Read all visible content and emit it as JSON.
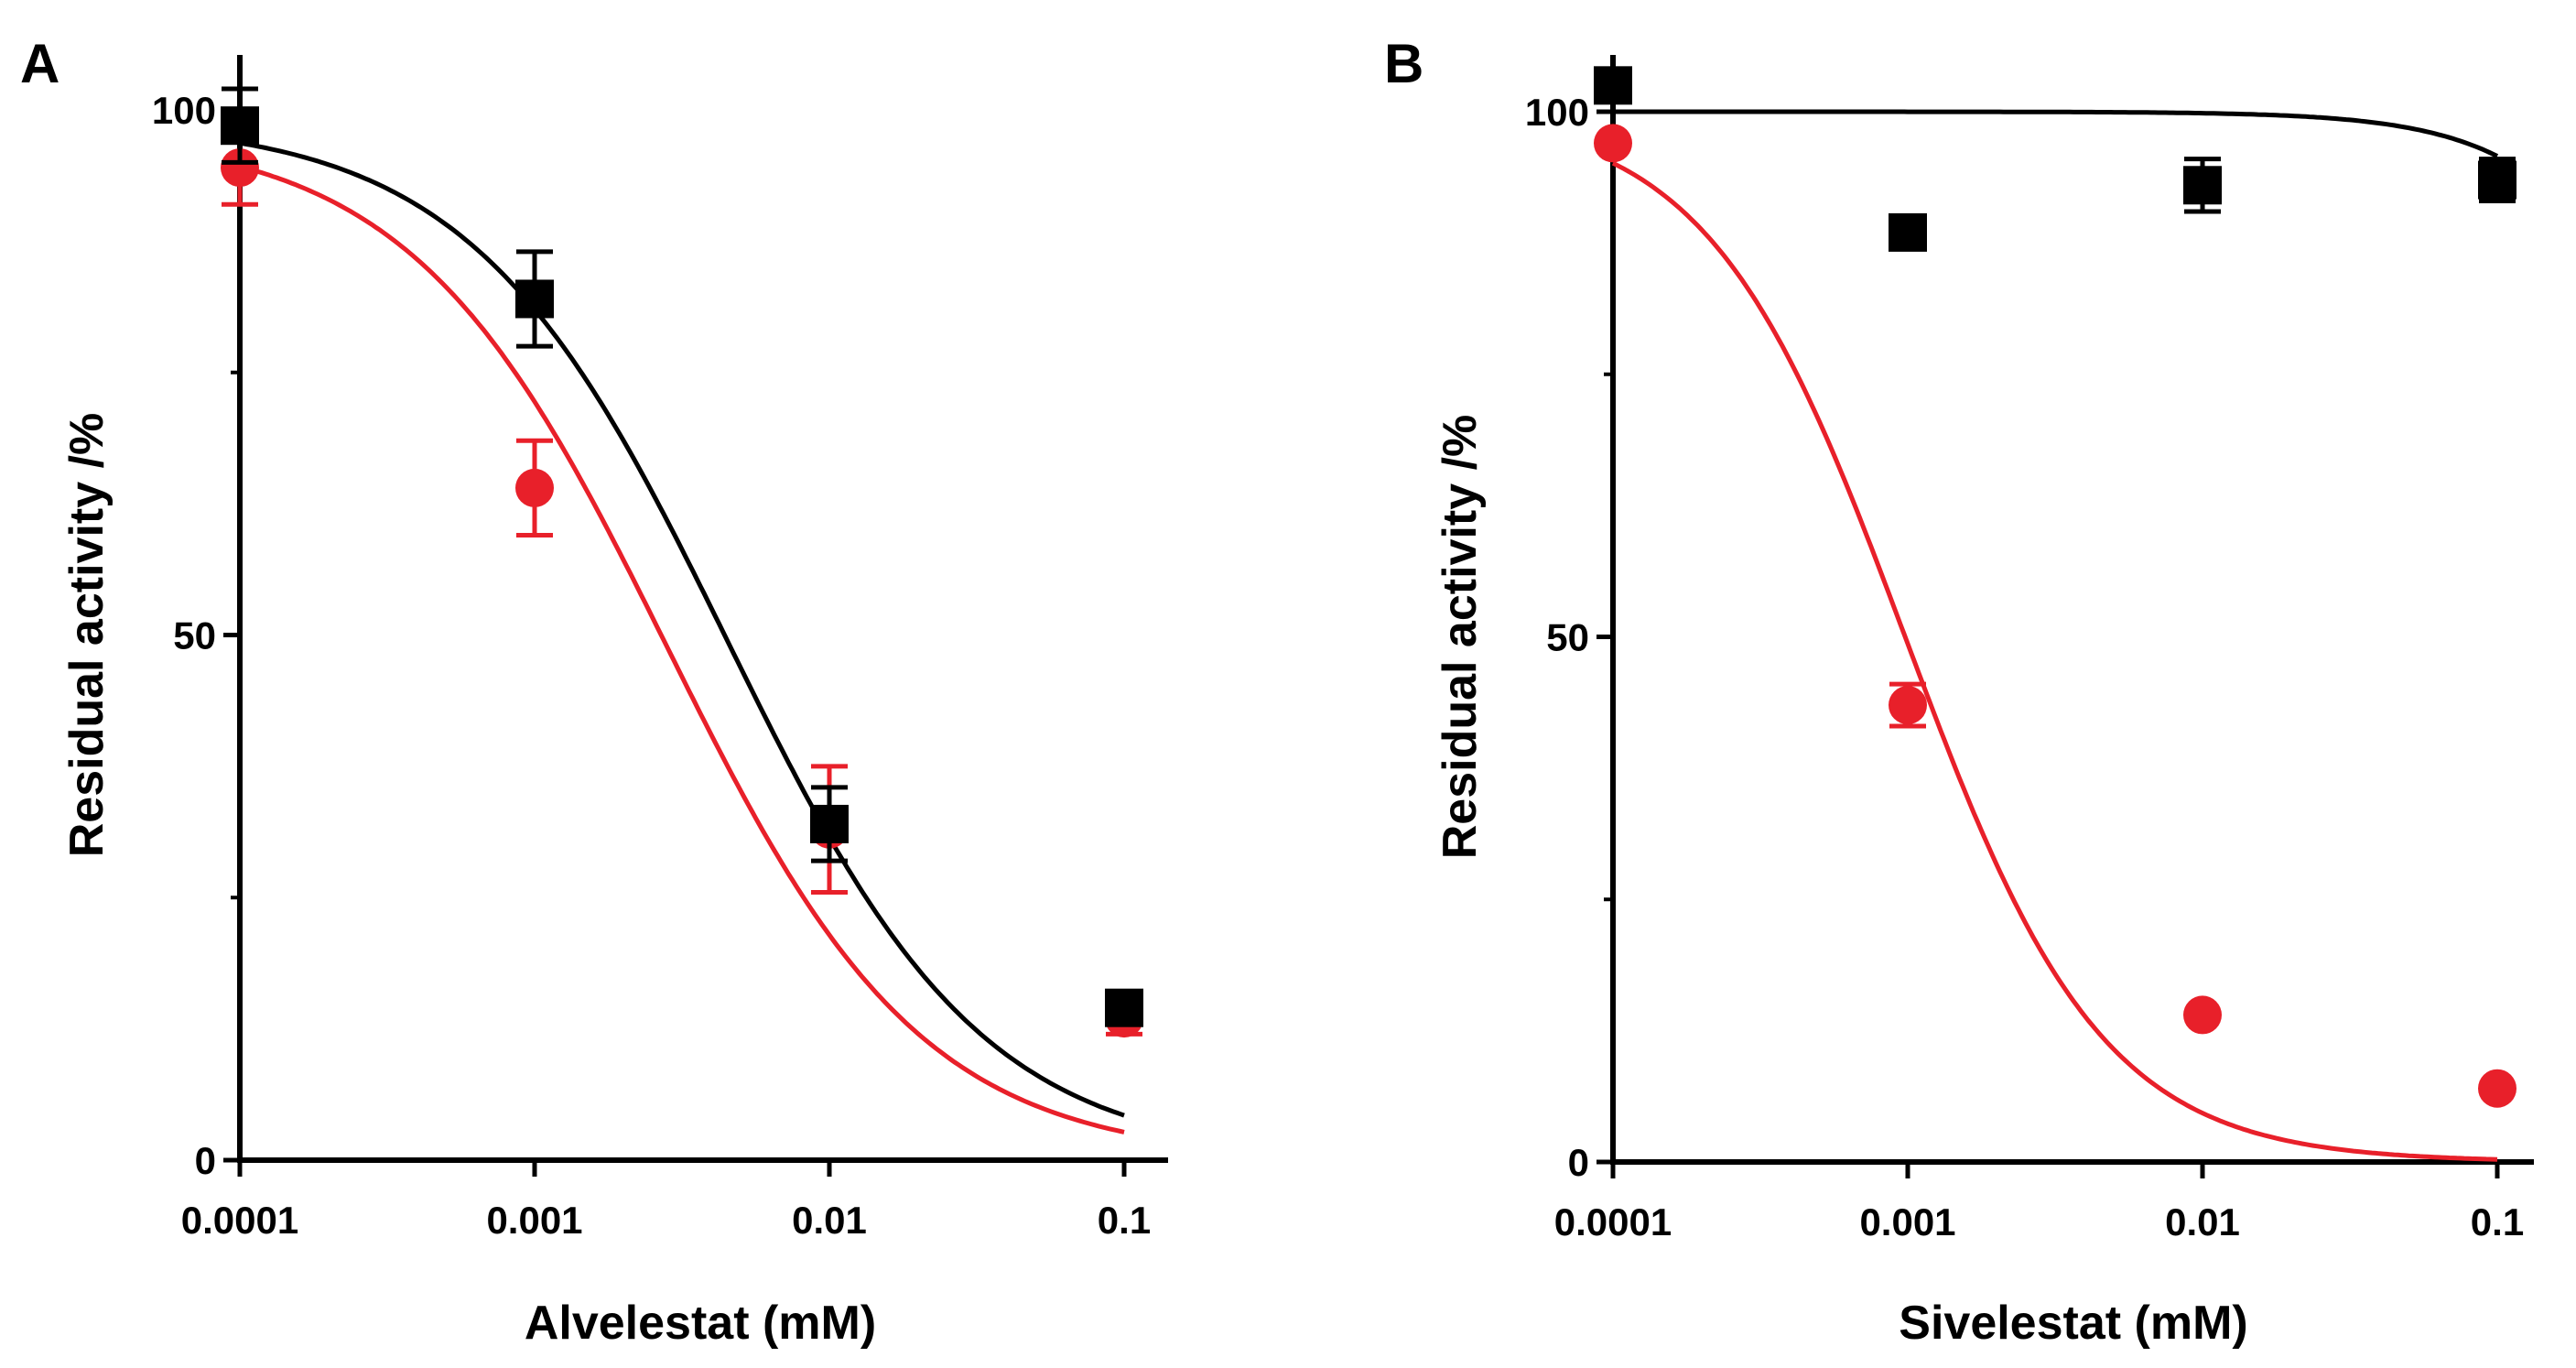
{
  "colors": {
    "black_series": "#000000",
    "red_series": "#e8202a",
    "axis": "#000000"
  },
  "panels": [
    {
      "label": "A"
    },
    {
      "label": "B"
    }
  ],
  "chart_data": [
    {
      "type": "scatter",
      "panel": "A",
      "xlabel": "Alvelestat (mM)",
      "ylabel": "Residual activity /%",
      "x_scale": "log",
      "xlim": [
        0.0001,
        0.1
      ],
      "ylim": [
        0,
        100
      ],
      "x_ticks": [
        0.0001,
        0.001,
        0.01,
        0.1
      ],
      "x_tick_labels": [
        "0.0001",
        "0.001",
        "0.01",
        "0.1"
      ],
      "y_ticks": [
        0,
        50,
        100
      ],
      "y_tick_labels": [
        "0",
        "50",
        "100"
      ],
      "grid": false,
      "legend": "none",
      "series": [
        {
          "color": "#e8202a",
          "marker": "circle",
          "points": [
            {
              "x": 0.0001,
              "y": 94.5,
              "err": 3.5
            },
            {
              "x": 0.001,
              "y": 64.0,
              "err": 4.5
            },
            {
              "x": 0.01,
              "y": 31.5,
              "err": 6.0
            },
            {
              "x": 0.1,
              "y": 13.5,
              "err": 1.5
            }
          ],
          "fit": {
            "top": 98,
            "bottom": 0,
            "ic50": 0.0028,
            "hill": 1.0
          }
        },
        {
          "color": "#000000",
          "marker": "square",
          "points": [
            {
              "x": 0.0001,
              "y": 98.5,
              "err": 3.5
            },
            {
              "x": 0.001,
              "y": 82.0,
              "err": 4.5
            },
            {
              "x": 0.01,
              "y": 32.0,
              "err": 3.5
            },
            {
              "x": 0.1,
              "y": 14.5,
              "err": 1.0
            }
          ],
          "fit": {
            "top": 99,
            "bottom": 0,
            "ic50": 0.0045,
            "hill": 1.0
          }
        }
      ]
    },
    {
      "type": "scatter",
      "panel": "B",
      "xlabel": "Sivelestat (mM)",
      "ylabel": "Residual activity /%",
      "x_scale": "log",
      "xlim": [
        0.0001,
        0.1
      ],
      "ylim": [
        0,
        100
      ],
      "x_ticks": [
        0.0001,
        0.001,
        0.01,
        0.1
      ],
      "x_tick_labels": [
        "0.0001",
        "0.001",
        "0.01",
        "0.1"
      ],
      "y_ticks": [
        0,
        50,
        100
      ],
      "y_tick_labels": [
        "0",
        "50",
        "100"
      ],
      "grid": false,
      "legend": "none",
      "series": [
        {
          "color": "#e8202a",
          "marker": "circle",
          "points": [
            {
              "x": 0.0001,
              "y": 97.0,
              "err": 0
            },
            {
              "x": 0.001,
              "y": 43.5,
              "err": 2.0
            },
            {
              "x": 0.01,
              "y": 14.0,
              "err": 0
            },
            {
              "x": 0.1,
              "y": 7.0,
              "err": 0
            }
          ],
          "fit": {
            "top": 100,
            "bottom": 0,
            "ic50": 0.00098,
            "hill": 1.3
          }
        },
        {
          "color": "#000000",
          "marker": "square",
          "points": [
            {
              "x": 0.0001,
              "y": 102.5,
              "err": 1.5
            },
            {
              "x": 0.001,
              "y": 88.5,
              "err": 1.0
            },
            {
              "x": 0.01,
              "y": 93.0,
              "err": 2.5
            },
            {
              "x": 0.1,
              "y": 93.5,
              "err": 2.0
            }
          ],
          "fit": {
            "top": 100,
            "bottom": 0,
            "ic50": 0.8,
            "hill": 1.5
          }
        }
      ]
    }
  ]
}
